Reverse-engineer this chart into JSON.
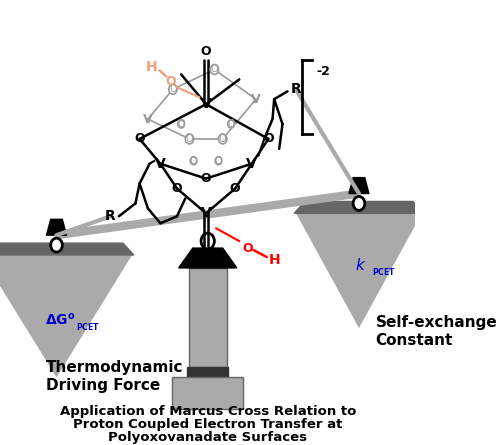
{
  "title_line1": "Application of Marcus Cross Relation to",
  "title_line2": "Proton Coupled Electron Transfer at",
  "title_line3": "Polyoxovanadate Surfaces",
  "left_label_line1": "Thermodynamic",
  "left_label_line2": "Driving Force",
  "right_label_line1": "Self-exchange",
  "right_label_line2": "Constant",
  "background_color": "#ffffff",
  "gray_color": "#aaaaaa",
  "dark_gray": "#666666",
  "black": "#000000",
  "blue": "#0000cc",
  "red_light": "#f0a080",
  "red": "#ff0000",
  "chem_gray": "#999999"
}
